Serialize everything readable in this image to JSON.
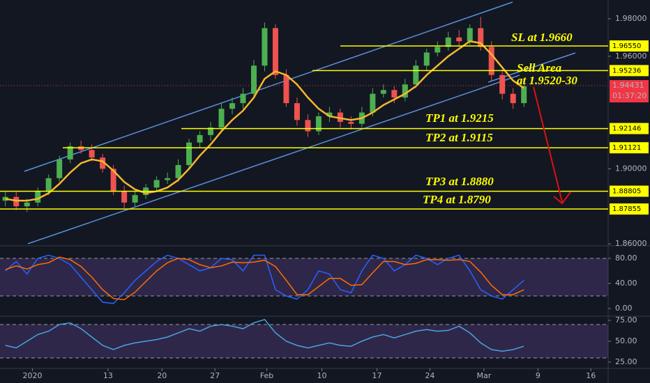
{
  "chart_data": [
    {
      "type": "candlestick",
      "open": [
        1.883,
        1.885,
        1.88,
        1.882,
        1.888,
        1.895,
        1.905,
        1.912,
        1.91,
        1.906,
        1.9,
        1.888,
        1.882,
        1.886,
        1.89,
        1.894,
        1.895,
        1.902,
        1.914,
        1.918,
        1.922,
        1.932,
        1.935,
        1.94,
        1.955,
        1.975,
        1.95,
        1.935,
        1.926,
        1.92,
        1.928,
        1.93,
        1.925,
        1.924,
        1.93,
        1.94,
        1.942,
        1.938,
        1.945,
        1.955,
        1.962,
        1.965,
        1.97,
        1.968,
        1.975,
        1.965,
        1.95,
        1.94,
        1.935
      ],
      "high": [
        1.888,
        1.888,
        1.884,
        1.89,
        1.897,
        1.907,
        1.914,
        1.915,
        1.913,
        1.908,
        1.902,
        1.891,
        1.888,
        1.892,
        1.896,
        1.898,
        1.905,
        1.916,
        1.92,
        1.925,
        1.935,
        1.938,
        1.943,
        1.958,
        1.978,
        1.977,
        1.953,
        1.938,
        1.929,
        1.93,
        1.933,
        1.932,
        1.928,
        1.933,
        1.943,
        1.945,
        1.944,
        1.948,
        1.958,
        1.964,
        1.968,
        1.973,
        1.974,
        1.977,
        1.981,
        1.968,
        1.953,
        1.943,
        1.947
      ],
      "low": [
        1.88,
        1.878,
        1.877,
        1.88,
        1.886,
        1.893,
        1.903,
        1.908,
        1.904,
        1.898,
        1.886,
        1.879,
        1.88,
        1.884,
        1.888,
        1.892,
        1.893,
        1.9,
        1.911,
        1.915,
        1.92,
        1.929,
        1.932,
        1.938,
        1.952,
        1.948,
        1.933,
        1.923,
        1.917,
        1.918,
        1.925,
        1.922,
        1.921,
        1.922,
        1.928,
        1.938,
        1.935,
        1.936,
        1.943,
        1.952,
        1.96,
        1.963,
        1.965,
        1.966,
        1.963,
        1.947,
        1.937,
        1.932,
        1.933
      ],
      "close": [
        1.885,
        1.88,
        1.882,
        1.888,
        1.895,
        1.905,
        1.912,
        1.91,
        1.906,
        1.9,
        1.888,
        1.882,
        1.886,
        1.89,
        1.894,
        1.895,
        1.902,
        1.914,
        1.918,
        1.922,
        1.932,
        1.935,
        1.94,
        1.955,
        1.975,
        1.95,
        1.935,
        1.926,
        1.92,
        1.928,
        1.93,
        1.925,
        1.924,
        1.93,
        1.94,
        1.942,
        1.938,
        1.945,
        1.955,
        1.962,
        1.965,
        1.97,
        1.968,
        1.975,
        1.965,
        1.95,
        1.94,
        1.935,
        1.944
      ],
      "up_color": "#4caf50",
      "down_color": "#ef5350",
      "ma": {
        "color": "#f5b82e",
        "values": [
          1.884,
          1.883,
          1.883,
          1.884,
          1.887,
          1.892,
          1.898,
          1.903,
          1.905,
          1.904,
          1.899,
          1.893,
          1.889,
          1.887,
          1.888,
          1.89,
          1.894,
          1.9,
          1.907,
          1.913,
          1.92,
          1.926,
          1.931,
          1.938,
          1.948,
          1.952,
          1.95,
          1.945,
          1.938,
          1.932,
          1.928,
          1.927,
          1.926,
          1.927,
          1.93,
          1.934,
          1.937,
          1.94,
          1.944,
          1.95,
          1.955,
          1.96,
          1.964,
          1.968,
          1.967,
          1.961,
          1.954,
          1.947,
          1.943
        ]
      },
      "ylim": [
        1.8593,
        1.99
      ],
      "yticks": [
        {
          "value": 1.86,
          "label": "1.86000"
        },
        {
          "value": 1.9,
          "label": "1.90000"
        },
        {
          "value": 1.96,
          "label": "1.96000"
        },
        {
          "value": 1.98,
          "label": "1.98000"
        }
      ],
      "xlim": [
        -0.5,
        55.8
      ],
      "xticks": [
        {
          "value": 2.5,
          "label": "2020"
        },
        {
          "value": 9.5,
          "label": "13"
        },
        {
          "value": 14.5,
          "label": "20"
        },
        {
          "value": 19.4,
          "label": "27"
        },
        {
          "value": 24.2,
          "label": "Feb"
        },
        {
          "value": 29.3,
          "label": "10"
        },
        {
          "value": 34.4,
          "label": "17"
        },
        {
          "value": 39.3,
          "label": "24"
        },
        {
          "value": 44.3,
          "label": "Mar"
        },
        {
          "value": 49.3,
          "label": "9"
        },
        {
          "value": 54.2,
          "label": "16"
        }
      ],
      "level_color": "#ffff00",
      "levels": [
        {
          "value": 1.9655,
          "label": "1.96550"
        },
        {
          "value": 1.95236,
          "label": "1.95236"
        },
        {
          "value": 1.92146,
          "label": "1.92146"
        },
        {
          "value": 1.91121,
          "label": "1.91121"
        },
        {
          "value": 1.88805,
          "label": "1.88805"
        },
        {
          "value": 1.87855,
          "label": "1.87855"
        }
      ],
      "current_price": {
        "value": 1.94431,
        "label": "1.94431",
        "countdown": "01:37:20",
        "color": "#f23645"
      },
      "annotations": [
        "SL at 1.9660",
        "Sell Area",
        "at 1.9520-30",
        "TP1 at 1.9215",
        "TP2 at 1.9115",
        "TP3 at 1.8880",
        "TP4 at 1.8790"
      ]
    },
    {
      "type": "oscillator",
      "series": [
        {
          "color": "#2962ff",
          "values": [
            60,
            75,
            55,
            80,
            85,
            80,
            70,
            50,
            30,
            10,
            8,
            25,
            45,
            60,
            75,
            85,
            80,
            70,
            60,
            65,
            80,
            78,
            60,
            85,
            85,
            30,
            20,
            15,
            30,
            60,
            55,
            30,
            25,
            60,
            85,
            80,
            60,
            70,
            85,
            80,
            70,
            80,
            85,
            60,
            30,
            20,
            15,
            30,
            45
          ]
        },
        {
          "color": "#ff6d00",
          "values": [
            62,
            68,
            63,
            70,
            73,
            82,
            78,
            67,
            50,
            30,
            16,
            14,
            26,
            43,
            60,
            73,
            80,
            78,
            70,
            65,
            68,
            74,
            73,
            74,
            77,
            67,
            45,
            22,
            22,
            35,
            48,
            48,
            37,
            38,
            57,
            75,
            75,
            70,
            72,
            78,
            78,
            77,
            78,
            75,
            58,
            37,
            22,
            22,
            30
          ]
        }
      ],
      "band": [
        20,
        80
      ],
      "ylim": [
        -10,
        97.8
      ],
      "yticks": [
        {
          "value": 0,
          "label": "0.00"
        },
        {
          "value": 40,
          "label": "40.00"
        },
        {
          "value": 80,
          "label": "80.00"
        }
      ]
    },
    {
      "type": "oscillator",
      "series": [
        {
          "color": "#4aa3df",
          "values": [
            45,
            42,
            50,
            58,
            62,
            70,
            72,
            65,
            55,
            45,
            40,
            45,
            48,
            50,
            52,
            55,
            60,
            65,
            62,
            68,
            70,
            68,
            65,
            72,
            76,
            60,
            50,
            45,
            42,
            45,
            48,
            45,
            44,
            50,
            55,
            58,
            54,
            58,
            62,
            64,
            62,
            63,
            68,
            60,
            48,
            40,
            38,
            40,
            44
          ]
        }
      ],
      "band": [
        30,
        70
      ],
      "ylim": [
        18.3,
        79.2
      ],
      "yticks": [
        {
          "value": 25,
          "label": "25.00"
        },
        {
          "value": 50,
          "label": "50.00"
        },
        {
          "value": 75,
          "label": "75.00"
        }
      ]
    }
  ]
}
